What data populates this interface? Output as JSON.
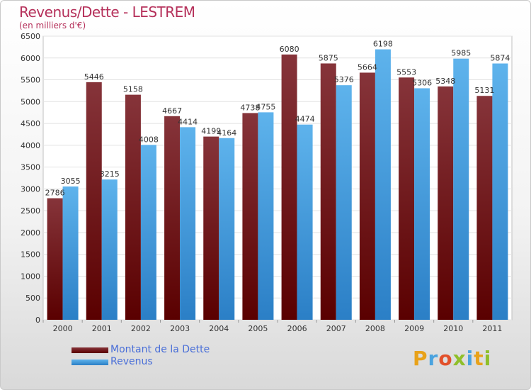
{
  "chart_data": {
    "type": "bar",
    "title": "Revenus/Dette - LESTREM",
    "subtitle": "(en milliers d'€)",
    "categories": [
      "2000",
      "2001",
      "2002",
      "2003",
      "2004",
      "2005",
      "2006",
      "2007",
      "2008",
      "2009",
      "2010",
      "2011"
    ],
    "series": [
      {
        "name": "Montant de la Dette",
        "color": "#6e0f12",
        "values": [
          2786,
          5446,
          5158,
          4667,
          4199,
          4738,
          6080,
          5875,
          5664,
          5553,
          5348,
          5131
        ]
      },
      {
        "name": "Revenus",
        "color": "#3d97dc",
        "values": [
          3055,
          3215,
          4008,
          4414,
          4164,
          4755,
          4474,
          5376,
          6198,
          5306,
          5985,
          5874
        ]
      }
    ],
    "ylim": [
      0,
      6500
    ],
    "yticks": [
      0,
      500,
      1000,
      1500,
      2000,
      2500,
      3000,
      3500,
      4000,
      4500,
      5000,
      5500,
      6000,
      6500
    ],
    "grid": true,
    "legend_position": "bottom-left"
  },
  "legend": {
    "debt_label": "Montant de la Dette",
    "revenue_label": "Revenus"
  },
  "logo": {
    "letters": [
      "P",
      "r",
      "o",
      "x",
      "i",
      "t",
      "i"
    ],
    "colors": [
      "#e8a21a",
      "#4aa3df",
      "#e2502a",
      "#8fbf2a",
      "#4aa3df",
      "#e8a21a",
      "#8fbf2a"
    ]
  }
}
